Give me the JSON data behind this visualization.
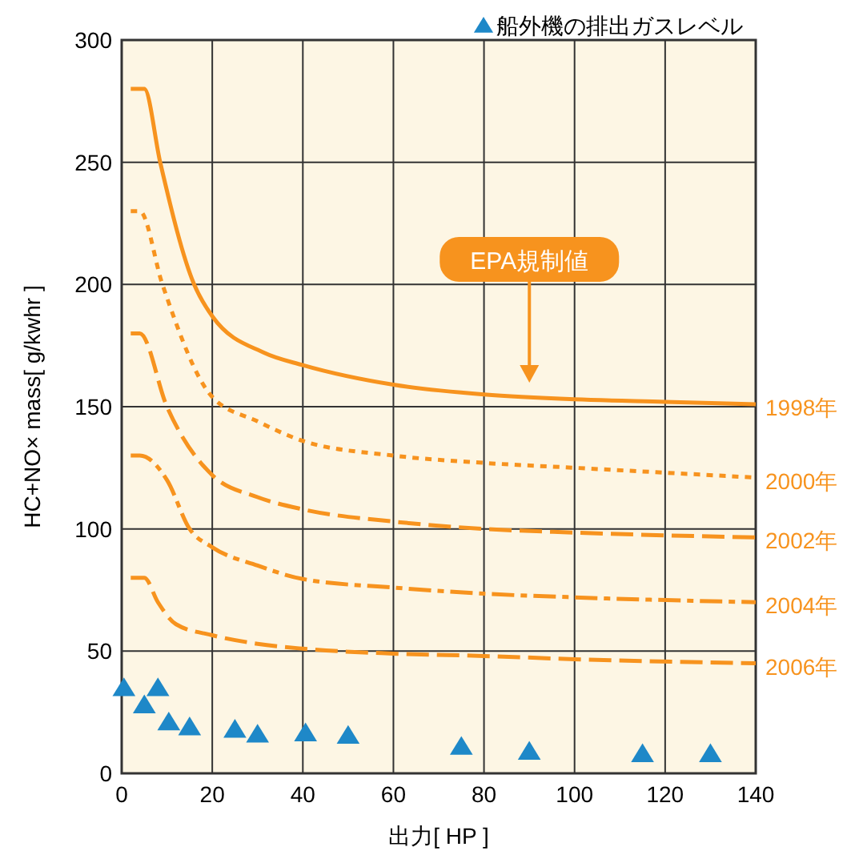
{
  "chart_data": {
    "type": "line",
    "xlabel": "出力[ HP ]",
    "ylabel": "HC+NO× mass[ g/kwhr ]",
    "xlim": [
      0,
      140
    ],
    "xticks": [
      0,
      20,
      40,
      60,
      80,
      100,
      120,
      140
    ],
    "ylim": [
      0,
      300
    ],
    "yticks": [
      0,
      50,
      100,
      150,
      200,
      250,
      300
    ],
    "grid": true,
    "legend": "top right",
    "marker": "none",
    "annotations": [
      "EPA規制値"
    ],
    "series": [
      {
        "name": "1998年",
        "color": "#f7931e",
        "line_style": "solid",
        "x": [
          2,
          5,
          8.5,
          16,
          20,
          31.5,
          40,
          60,
          80,
          100,
          120,
          140
        ],
        "values": [
          280,
          280,
          250,
          200,
          187,
          172,
          167,
          159,
          155,
          153,
          152,
          151
        ]
      },
      {
        "name": "2000年",
        "color": "#f7931e",
        "line_style": "dotted",
        "x": [
          2,
          4,
          9,
          20,
          30,
          40,
          60,
          80,
          100,
          120,
          140
        ],
        "values": [
          230,
          230,
          200,
          154,
          144,
          136,
          130,
          127,
          125,
          123,
          121
        ]
      },
      {
        "name": "2002年",
        "color": "#f7931e",
        "line_style": "dashed",
        "x": [
          2,
          4,
          10,
          20,
          30,
          40,
          60,
          80,
          100,
          140
        ],
        "values": [
          180,
          180,
          150,
          122,
          113,
          108,
          103,
          100,
          98.5,
          96.5
        ]
      },
      {
        "name": "2004年",
        "color": "#f7931e",
        "line_style": "dashdot",
        "x": [
          2,
          4,
          10,
          15,
          20,
          30,
          40,
          60,
          80,
          100,
          140
        ],
        "values": [
          130,
          130,
          120,
          100,
          92.5,
          85,
          79.5,
          76,
          73.5,
          72,
          70
        ]
      },
      {
        "name": "2006年",
        "color": "#f7931e",
        "line_style": "dashed",
        "x": [
          2,
          5,
          8,
          12,
          20,
          30,
          40,
          60,
          80,
          100,
          140
        ],
        "values": [
          80,
          80,
          70,
          61,
          56.5,
          53,
          51,
          49,
          48,
          46.7,
          45
        ]
      },
      {
        "type": "scatter",
        "name": "船外機の排出ガスレベル",
        "color": "#1e88c8",
        "marker": "triangle",
        "x": [
          0.5,
          5,
          8,
          10.4,
          15,
          25,
          30,
          40.6,
          50,
          75,
          90,
          115,
          130
        ],
        "values": [
          35,
          28,
          35,
          21,
          19,
          18,
          16,
          16.5,
          15.5,
          11,
          9,
          8,
          8
        ]
      }
    ]
  }
}
